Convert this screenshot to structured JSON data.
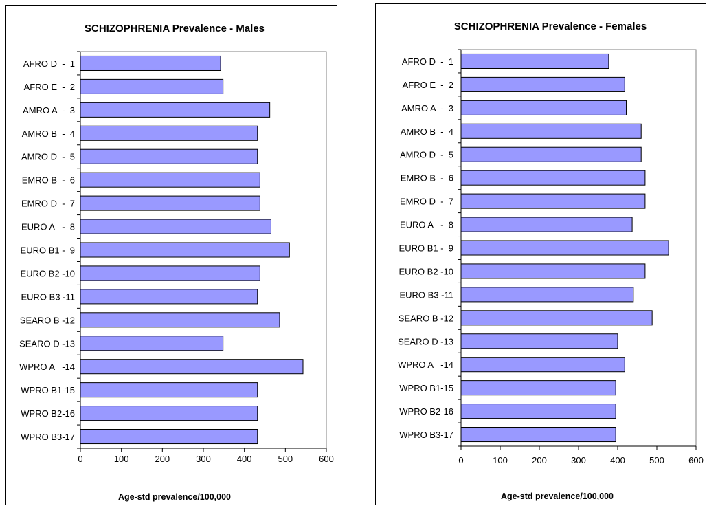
{
  "chart_data": [
    {
      "type": "bar",
      "orientation": "horizontal",
      "title": "SCHIZOPHRENIA Prevalence - Males",
      "xlabel": "Age-std prevalence/100,000",
      "ylabel": "",
      "xlim": [
        0,
        600
      ],
      "xticks": [
        "0",
        "100",
        "200",
        "300",
        "400",
        "500",
        "600"
      ],
      "categories": [
        "AFRO D  -  1",
        "AFRO E  -  2",
        "AMRO A  -  3",
        "AMRO B  -  4",
        "AMRO D  -  5",
        "EMRO B  -  6",
        "EMRO D  -  7",
        "EURO A   -  8",
        "EURO B1 -  9",
        "EURO B2 -10",
        "EURO B3 -11",
        "SEARO B -12",
        "SEARO D -13",
        "WPRO A   -14",
        "WPRO B1-15",
        "WPRO B2-16",
        "WPRO B3-17"
      ],
      "values": [
        342,
        348,
        462,
        432,
        432,
        438,
        438,
        465,
        510,
        438,
        432,
        486,
        348,
        543,
        432,
        432,
        432
      ],
      "bar_color": "#9999ff",
      "grid": false
    },
    {
      "type": "bar",
      "orientation": "horizontal",
      "title": "SCHIZOPHRENIA Prevalence - Females",
      "xlabel": "Age-std prevalence/100,000",
      "ylabel": "",
      "xlim": [
        0,
        600
      ],
      "xticks": [
        "0",
        "100",
        "200",
        "300",
        "400",
        "500",
        "600"
      ],
      "categories": [
        "AFRO D  -  1",
        "AFRO E  -  2",
        "AMRO A  -  3",
        "AMRO B  -  4",
        "AMRO D  -  5",
        "EMRO B  -  6",
        "EMRO D  -  7",
        "EURO A   -  8",
        "EURO B1 -  9",
        "EURO B2 -10",
        "EURO B3 -11",
        "SEARO B -12",
        "SEARO D -13",
        "WPRO A   -14",
        "WPRO B1-15",
        "WPRO B2-16",
        "WPRO B3-17"
      ],
      "values": [
        377,
        418,
        422,
        460,
        460,
        470,
        470,
        437,
        530,
        470,
        440,
        488,
        400,
        418,
        395,
        395,
        395
      ],
      "bar_color": "#9999ff",
      "grid": false
    }
  ]
}
